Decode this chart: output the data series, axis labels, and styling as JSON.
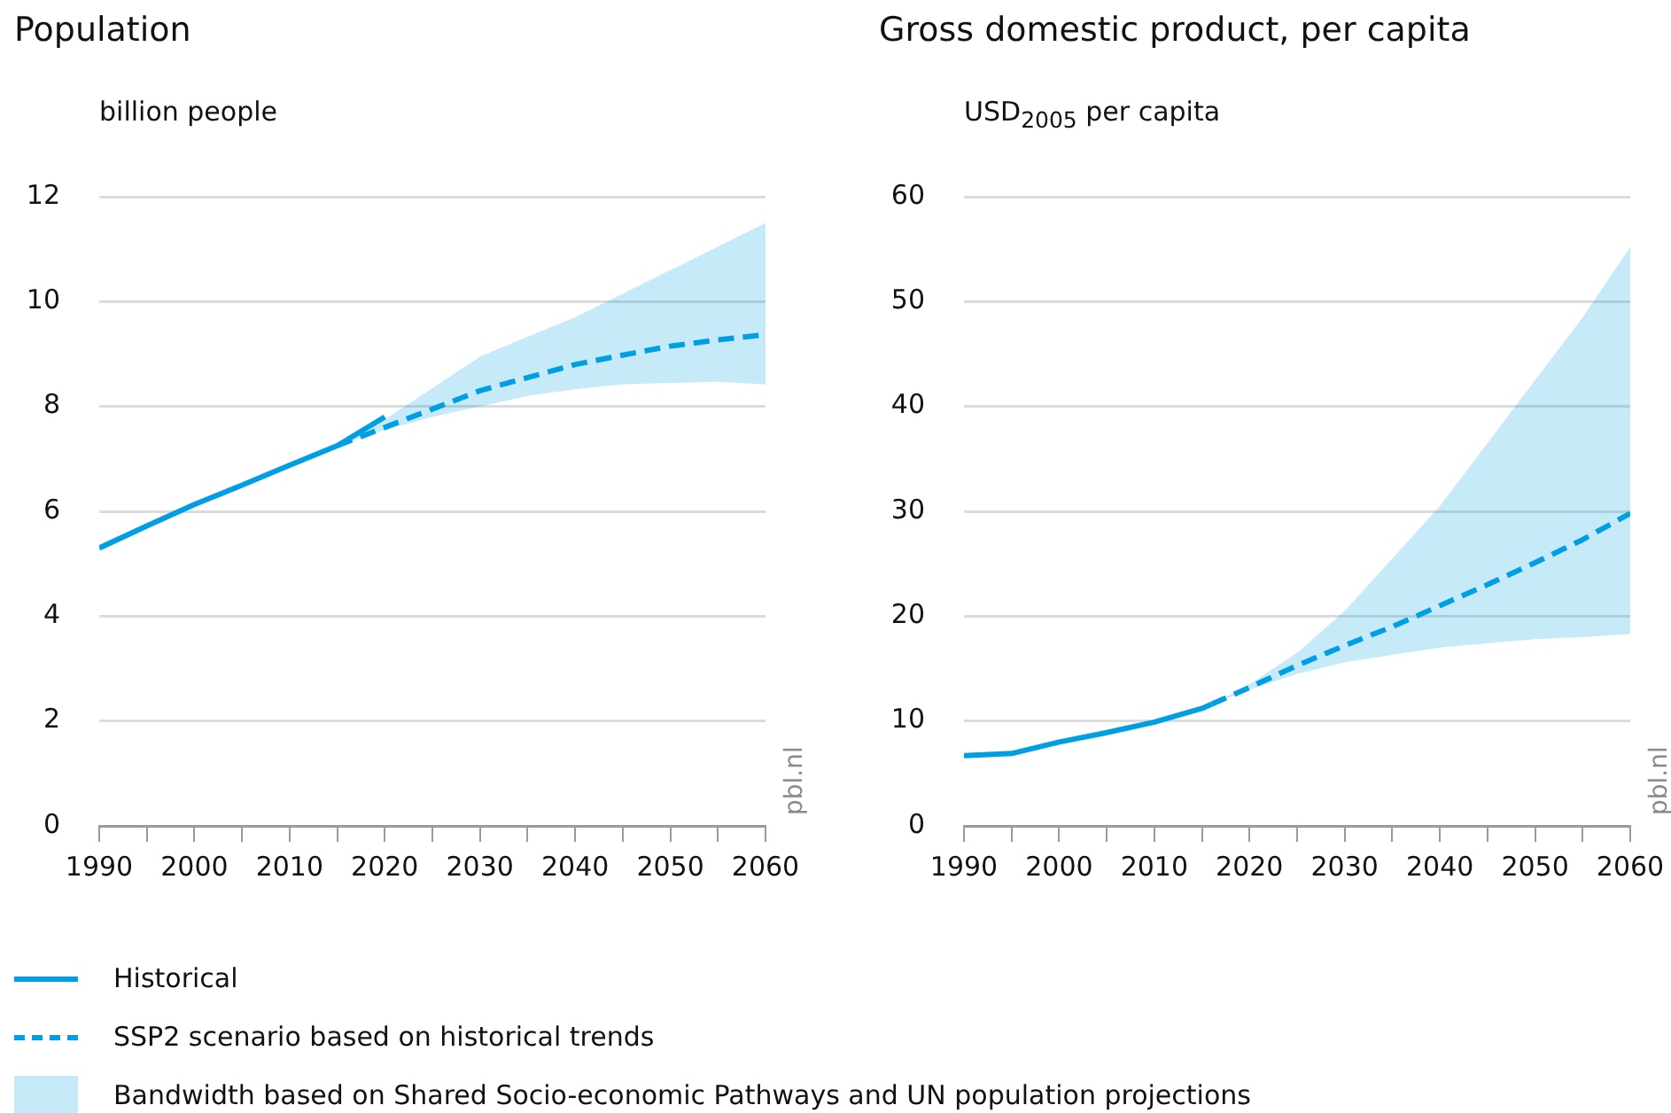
{
  "chart_data": [
    {
      "type": "line",
      "title": "Population",
      "ylabel": "billion people",
      "xlim": [
        1990,
        2060
      ],
      "xticks": [
        1990,
        {
          "value": 1995,
          "label": null
        },
        2000,
        {
          "value": 2005,
          "label": null
        },
        2010,
        {
          "value": 2015,
          "label": null
        },
        2020,
        {
          "value": 2025,
          "label": null
        },
        2030,
        {
          "value": 2035,
          "label": null
        },
        2040,
        {
          "value": 2045,
          "label": null
        },
        2050,
        {
          "value": 2055,
          "label": null
        },
        2060
      ],
      "ylim": [
        0,
        12
      ],
      "yticks": [
        0,
        2,
        4,
        6,
        8,
        10,
        12
      ],
      "grid": "y",
      "legend": "bottom",
      "annotations": [
        "pbl.nl",
        "Bandwidth based on Shared Socio-economic Pathways and UN population projections"
      ],
      "series": [
        {
          "name": "Historical",
          "color": "#009fe3",
          "line_style": "solid",
          "x": [
            1990,
            1995,
            2000,
            2005,
            2010,
            2015,
            2020
          ],
          "values": [
            5.3,
            5.72,
            6.13,
            6.5,
            6.88,
            7.25,
            7.8
          ]
        },
        {
          "name": "SSP2 scenario based on historical trends",
          "color": "#009fe3",
          "line_style": "dashed",
          "x": [
            2015,
            2020,
            2025,
            2030,
            2035,
            2040,
            2045,
            2050,
            2055,
            2060
          ],
          "values": [
            7.25,
            7.6,
            7.95,
            8.3,
            8.55,
            8.8,
            8.98,
            9.15,
            9.27,
            9.37
          ],
          "lower": [
            7.25,
            7.55,
            7.8,
            8.0,
            8.2,
            8.33,
            8.42,
            8.45,
            8.47,
            8.42
          ],
          "upper": [
            7.25,
            7.75,
            8.35,
            8.95,
            9.33,
            9.7,
            10.15,
            10.6,
            11.05,
            11.5
          ]
        }
      ]
    },
    {
      "type": "line",
      "title": "Gross domestic product, per capita",
      "ylabel": "USD$_{2005}$ per capita",
      "xlim": [
        1990,
        2060
      ],
      "xticks": [
        1990,
        {
          "value": 1995,
          "label": null
        },
        2000,
        {
          "value": 2005,
          "label": null
        },
        2010,
        {
          "value": 2015,
          "label": null
        },
        2020,
        {
          "value": 2025,
          "label": null
        },
        2030,
        {
          "value": 2035,
          "label": null
        },
        2040,
        {
          "value": 2045,
          "label": null
        },
        2050,
        {
          "value": 2055,
          "label": null
        },
        2060
      ],
      "ylim": [
        0,
        60
      ],
      "yticks": [
        0,
        10,
        20,
        30,
        40,
        50,
        60
      ],
      "grid": "y",
      "annotations": [
        "pbl.nl"
      ],
      "series": [
        {
          "color": "#009fe3",
          "line_style": "solid",
          "x": [
            1990,
            1995,
            2000,
            2005,
            2010,
            2015,
            2016
          ],
          "values": [
            6.7,
            6.9,
            8.0,
            8.9,
            9.9,
            11.2,
            11.6
          ]
        },
        {
          "color": "#009fe3",
          "line_style": "dashed",
          "x": [
            2016,
            2020,
            2025,
            2030,
            2035,
            2040,
            2045,
            2050,
            2055,
            2060
          ],
          "values": [
            11.6,
            13.2,
            15.3,
            17.2,
            19.0,
            21.0,
            23.0,
            25.1,
            27.3,
            29.8
          ],
          "lower": [
            11.6,
            13.0,
            14.5,
            15.6,
            16.3,
            17.0,
            17.4,
            17.8,
            18.0,
            18.3
          ],
          "upper": [
            11.6,
            13.5,
            16.5,
            20.5,
            25.5,
            30.5,
            36.5,
            42.5,
            48.5,
            55.2
          ]
        }
      ]
    }
  ]
}
